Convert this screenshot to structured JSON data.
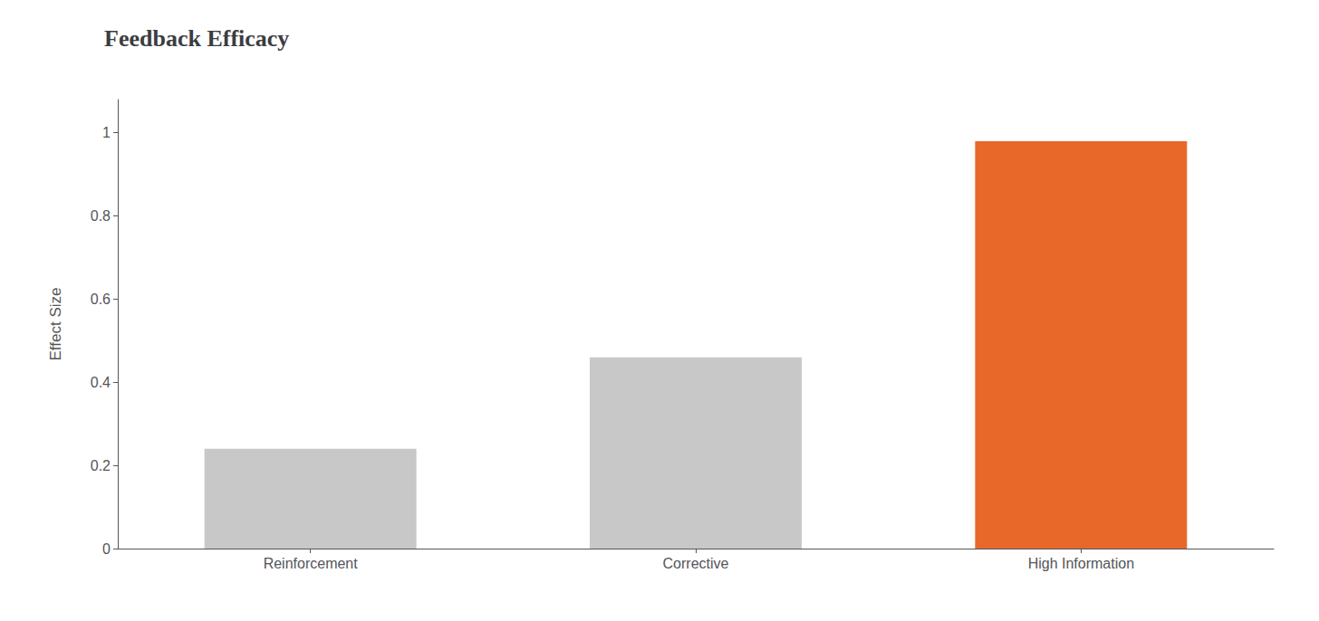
{
  "chart_data": {
    "type": "bar",
    "title": "Feedback Efficacy",
    "categories": [
      "Reinforcement",
      "Corrective",
      "High Information"
    ],
    "values": [
      0.24,
      0.46,
      0.98
    ],
    "colors": [
      "#c8c8c8",
      "#c8c8c8",
      "#e8682a"
    ],
    "ylabel": "Effect Size",
    "ylim": [
      0,
      1.08
    ],
    "yticks": [
      0,
      0.2,
      0.4,
      0.6,
      0.8,
      1
    ],
    "grid": false
  }
}
